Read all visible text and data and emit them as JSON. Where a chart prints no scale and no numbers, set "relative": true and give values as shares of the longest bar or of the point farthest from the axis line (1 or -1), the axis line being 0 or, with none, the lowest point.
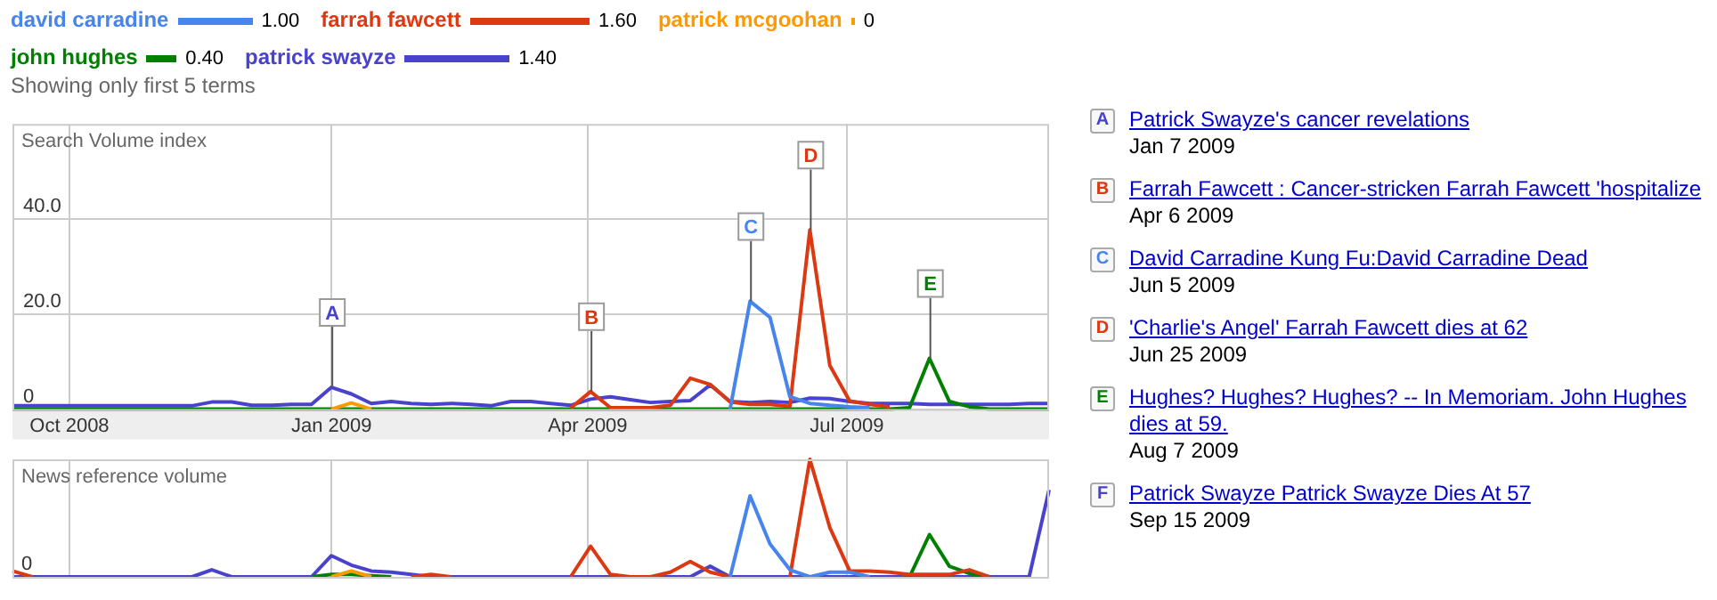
{
  "chart_data": [
    {
      "type": "line",
      "subtitle": "Showing only first 5 terms",
      "ylabel": "Search Volume index",
      "x": [
        "2008-09-11",
        "2008-09-18",
        "2008-09-25",
        "2008-10-02",
        "2008-10-09",
        "2008-10-16",
        "2008-10-23",
        "2008-10-30",
        "2008-11-06",
        "2008-11-13",
        "2008-11-20",
        "2008-11-27",
        "2008-12-04",
        "2008-12-11",
        "2008-12-18",
        "2008-12-25",
        "2009-01-01",
        "2009-01-08",
        "2009-01-15",
        "2009-01-22",
        "2009-01-29",
        "2009-02-05",
        "2009-02-12",
        "2009-02-19",
        "2009-02-26",
        "2009-03-05",
        "2009-03-12",
        "2009-03-19",
        "2009-03-26",
        "2009-04-02",
        "2009-04-09",
        "2009-04-16",
        "2009-04-23",
        "2009-04-30",
        "2009-05-07",
        "2009-05-14",
        "2009-05-21",
        "2009-05-28",
        "2009-06-04",
        "2009-06-11",
        "2009-06-18",
        "2009-06-25",
        "2009-07-02",
        "2009-07-09",
        "2009-07-16",
        "2009-07-23",
        "2009-07-30",
        "2009-08-06",
        "2009-08-13",
        "2009-08-20",
        "2009-08-27",
        "2009-09-03",
        "2009-09-10"
      ],
      "series": [
        {
          "name": "david carradine",
          "color": "#4684ee",
          "values": [
            null,
            null,
            null,
            null,
            null,
            null,
            null,
            null,
            null,
            null,
            null,
            null,
            null,
            null,
            null,
            null,
            null,
            null,
            null,
            null,
            null,
            null,
            null,
            null,
            null,
            null,
            null,
            null,
            null,
            null,
            null,
            null,
            null,
            null,
            null,
            null,
            0,
            22.7,
            19.3,
            2.6,
            1.2,
            0.8,
            0.5,
            0.3,
            null,
            null,
            null,
            null,
            null,
            null,
            null,
            null,
            null
          ]
        },
        {
          "name": "farrah fawcett",
          "color": "#dc3912",
          "values": [
            null,
            null,
            null,
            null,
            null,
            null,
            null,
            null,
            null,
            null,
            null,
            null,
            null,
            null,
            null,
            null,
            null,
            null,
            null,
            null,
            null,
            null,
            null,
            null,
            null,
            null,
            null,
            null,
            0.2,
            3.7,
            0.3,
            0.3,
            0.3,
            0.8,
            6.5,
            5.2,
            1.5,
            1.0,
            1.0,
            0.6,
            37.7,
            9.2,
            1.7,
            1.0,
            0.5,
            null,
            null,
            null,
            null,
            null,
            null,
            null,
            null
          ]
        },
        {
          "name": "patrick mcgoohan",
          "color": "#ff9900",
          "values": [
            null,
            null,
            null,
            null,
            null,
            null,
            null,
            null,
            null,
            null,
            null,
            null,
            null,
            null,
            null,
            null,
            0,
            1.3,
            0,
            null,
            null,
            null,
            null,
            null,
            null,
            null,
            null,
            null,
            null,
            null,
            null,
            null,
            null,
            null,
            null,
            null,
            null,
            null,
            null,
            null,
            null,
            null,
            null,
            null,
            null,
            null,
            null,
            null,
            null,
            null,
            null,
            null,
            null
          ]
        },
        {
          "name": "john hughes",
          "color": "#008000",
          "values": [
            0,
            0,
            0,
            0,
            0,
            0,
            0,
            0,
            0,
            0,
            0,
            0,
            0,
            0,
            0,
            0,
            0,
            0,
            0,
            0,
            0,
            0,
            0,
            0,
            0,
            0,
            0,
            0,
            0,
            0,
            0,
            0,
            0,
            0,
            0,
            0,
            0,
            0,
            0,
            0,
            0,
            0,
            0,
            0,
            0,
            0.3,
            10.7,
            1.6,
            0.5,
            0,
            0,
            0,
            0
          ]
        },
        {
          "name": "patrick swayze",
          "color": "#4942cc",
          "values": [
            0.7,
            0.7,
            0.7,
            0.7,
            0.7,
            0.7,
            0.7,
            0.7,
            0.7,
            0.7,
            1.5,
            1.5,
            0.8,
            0.8,
            1.0,
            1.0,
            4.6,
            3.2,
            1.2,
            1.6,
            1.2,
            1.0,
            1.2,
            1.0,
            0.7,
            1.6,
            1.6,
            1.2,
            0.8,
            2.1,
            2.6,
            2.0,
            1.4,
            1.6,
            1.8,
            5.1,
            1.6,
            1.4,
            1.6,
            1.4,
            2.3,
            2.2,
            1.6,
            1.2,
            1.2,
            1.2,
            1.0,
            1.0,
            1.0,
            1.0,
            1.0,
            1.2,
            1.2
          ]
        }
      ],
      "xlim": [
        "2008-09-11",
        "2009-09-10"
      ],
      "xticks": [
        {
          "value": "2008-10-01",
          "label": "Oct 2008"
        },
        {
          "value": "2009-01-01",
          "label": "Jan 2009"
        },
        {
          "value": "2009-04-01",
          "label": "Apr 2009"
        },
        {
          "value": "2009-07-01",
          "label": "Jul 2009"
        }
      ],
      "ylim": [
        0,
        60
      ],
      "yticks": [
        {
          "value": 0,
          "label": "0"
        },
        {
          "value": 20,
          "label": "20.0"
        },
        {
          "value": 40,
          "label": "40.0"
        }
      ],
      "grid": true,
      "legend": "top",
      "marker": "none",
      "line_style": "solid",
      "annotations": [
        {
          "text": "A",
          "x": "2009-01-01",
          "y": 4.6
        },
        {
          "text": "B",
          "x": "2009-04-02",
          "y": 3.7
        },
        {
          "text": "C",
          "x": "2009-05-28",
          "y": 22.7
        },
        {
          "text": "D",
          "x": "2009-06-18",
          "y": 37.7
        },
        {
          "text": "E",
          "x": "2009-07-30",
          "y": 10.7
        },
        "1.00",
        "1.60",
        "0",
        "0.40",
        "1.40",
        "A",
        "Patrick Swayze's cancer revelations",
        "Jan 7 2009",
        "B",
        "Farrah Fawcett : Cancer-stricken Farrah Fawcett 'hospitalize",
        "Apr 6 2009",
        "C",
        "David Carradine Kung Fu:David Carradine Dead",
        "Jun 5 2009",
        "D",
        "'Charlie's Angel' Farrah Fawcett dies at 62",
        "Jun 25 2009",
        "E",
        "Hughes? Hughes? Hughes? -- In Memoriam. John Hughes dies at 59.",
        "Aug 7 2009",
        "F",
        "Patrick Swayze Patrick Swayze Dies At 57",
        "Sep 15 2009"
      ]
    },
    {
      "type": "line",
      "ylabel": "News reference volume",
      "relative": true,
      "tick_labels": false,
      "grid": "x",
      "marker": "none",
      "line_style": "solid",
      "x": [
        "2008-09-11",
        "2008-09-18",
        "2008-09-25",
        "2008-10-02",
        "2008-10-09",
        "2008-10-16",
        "2008-10-23",
        "2008-10-30",
        "2008-11-06",
        "2008-11-13",
        "2008-11-20",
        "2008-11-27",
        "2008-12-04",
        "2008-12-11",
        "2008-12-18",
        "2008-12-25",
        "2009-01-01",
        "2009-01-08",
        "2009-01-15",
        "2009-01-22",
        "2009-01-29",
        "2009-02-05",
        "2009-02-12",
        "2009-02-19",
        "2009-02-26",
        "2009-03-05",
        "2009-03-12",
        "2009-03-19",
        "2009-03-26",
        "2009-04-02",
        "2009-04-09",
        "2009-04-16",
        "2009-04-23",
        "2009-04-30",
        "2009-05-07",
        "2009-05-14",
        "2009-05-21",
        "2009-05-28",
        "2009-06-04",
        "2009-06-11",
        "2009-06-18",
        "2009-06-25",
        "2009-07-02",
        "2009-07-09",
        "2009-07-16",
        "2009-07-23",
        "2009-07-30",
        "2009-08-06",
        "2009-08-13",
        "2009-08-20",
        "2009-08-27",
        "2009-09-03",
        "2009-09-10"
      ],
      "series": [
        {
          "color": "#4684ee",
          "values": [
            null,
            null,
            null,
            null,
            null,
            null,
            null,
            null,
            null,
            null,
            null,
            null,
            null,
            null,
            null,
            null,
            null,
            null,
            null,
            null,
            null,
            null,
            null,
            null,
            null,
            null,
            null,
            null,
            null,
            null,
            null,
            null,
            null,
            null,
            null,
            null,
            0,
            0.69,
            0.28,
            0.06,
            0,
            0.04,
            0.04,
            0,
            null,
            null,
            null,
            null,
            null,
            null,
            null,
            null,
            null
          ]
        },
        {
          "color": "#dc3912",
          "values": [
            0.05,
            0,
            null,
            null,
            null,
            null,
            null,
            null,
            null,
            null,
            null,
            null,
            null,
            null,
            null,
            null,
            null,
            null,
            null,
            null,
            0,
            0.02,
            0,
            null,
            null,
            null,
            null,
            null,
            0,
            0.26,
            0.02,
            0,
            0,
            0.04,
            0.13,
            0.04,
            0,
            null,
            null,
            0,
            1,
            0.42,
            0.05,
            0.05,
            0.04,
            0.02,
            0.02,
            0.02,
            0.06,
            0,
            null,
            null,
            null
          ]
        },
        {
          "color": "#ff9900",
          "values": [
            null,
            null,
            null,
            null,
            null,
            null,
            null,
            null,
            null,
            null,
            null,
            null,
            null,
            null,
            null,
            null,
            0,
            0.05,
            0,
            null,
            null,
            null,
            null,
            null,
            null,
            null,
            null,
            null,
            null,
            null,
            null,
            null,
            null,
            null,
            null,
            null,
            null,
            null,
            null,
            null,
            null,
            null,
            null,
            null,
            null,
            null,
            null,
            null,
            null,
            null,
            null,
            null,
            null
          ]
        },
        {
          "color": "#008000",
          "values": [
            null,
            null,
            null,
            null,
            null,
            null,
            null,
            null,
            null,
            null,
            null,
            null,
            null,
            null,
            null,
            0,
            0.02,
            0.02,
            0.01,
            0,
            null,
            null,
            null,
            null,
            null,
            null,
            null,
            null,
            null,
            null,
            null,
            null,
            null,
            null,
            null,
            null,
            null,
            null,
            null,
            null,
            null,
            null,
            null,
            null,
            null,
            0,
            0.36,
            0.09,
            0.03,
            0,
            null,
            null,
            null
          ]
        },
        {
          "color": "#4942cc",
          "values": [
            0,
            0,
            0,
            0,
            0,
            0,
            0,
            0,
            0,
            0,
            0.06,
            0,
            0,
            0,
            0,
            0,
            0.18,
            0.1,
            0.05,
            0.04,
            0.02,
            0,
            0,
            0,
            0,
            0,
            0,
            0,
            0,
            0,
            0,
            0,
            0,
            0,
            0,
            0.09,
            0,
            0,
            0,
            0,
            0,
            0,
            0,
            0,
            0,
            0,
            0,
            0,
            0,
            0,
            0,
            0,
            0.74
          ]
        }
      ],
      "xlim": [
        "2008-09-11",
        "2009-09-10"
      ],
      "xticks": [
        {
          "value": "2008-10-01",
          "label": null
        },
        {
          "value": "2009-01-01",
          "label": null
        },
        {
          "value": "2009-04-01",
          "label": null
        },
        {
          "value": "2009-07-01",
          "label": null
        }
      ],
      "annotations": [
        "0"
      ]
    }
  ]
}
